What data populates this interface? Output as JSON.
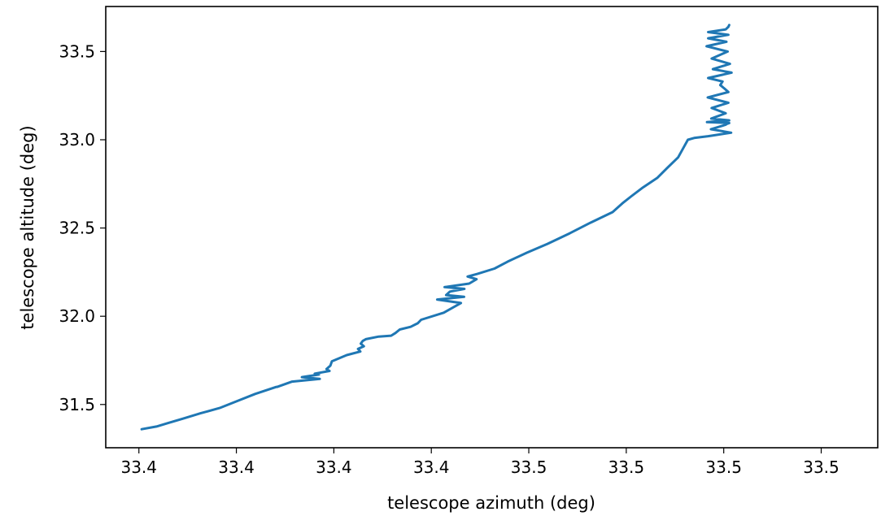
{
  "chart_data": {
    "type": "line",
    "xlabel": "telescope azimuth (deg)",
    "ylabel": "telescope altitude (deg)",
    "xlim": [
      33.3565,
      33.5545
    ],
    "ylim": [
      31.255,
      33.755
    ],
    "xtick_values": [
      33.365,
      33.39,
      33.415,
      33.44,
      33.465,
      33.49,
      33.515,
      33.54
    ],
    "xtick_labels": [
      "33.4",
      "33.4",
      "33.4",
      "33.4",
      "33.5",
      "33.5",
      "33.5",
      "33.5"
    ],
    "ytick_values": [
      31.5,
      32.0,
      32.5,
      33.0,
      33.5
    ],
    "ytick_labels": [
      "31.5",
      "32.0",
      "32.5",
      "33.0",
      "33.5"
    ],
    "grid": false,
    "line_color": "#1f77b4",
    "series": [
      {
        "x": [
          33.3657,
          33.3695,
          33.3725,
          33.3763,
          33.3808,
          33.3857,
          33.3903,
          33.3948,
          33.4003,
          33.4005,
          33.4043,
          33.4114,
          33.4068,
          33.4112,
          33.4101,
          33.4139,
          33.4131,
          33.4141,
          33.4145,
          33.4183,
          33.4218,
          33.4212,
          33.4227,
          33.4219,
          33.4224,
          33.4232,
          33.4265,
          33.4297,
          33.4308,
          33.4319,
          33.4347,
          33.4365,
          33.4374,
          33.4432,
          33.4476,
          33.4415,
          33.4484,
          33.4438,
          33.4448,
          33.4485,
          33.4434,
          33.4497,
          33.4516,
          33.4493,
          33.4518,
          33.4562,
          33.4596,
          33.4645,
          33.4698,
          33.4755,
          33.4808,
          33.4865,
          33.489,
          33.4913,
          33.4943,
          33.498,
          33.5005,
          33.5033,
          33.5048,
          33.5058,
          33.5074,
          33.511,
          33.5169,
          33.5117,
          33.5155,
          33.5158,
          33.5164,
          33.5107,
          33.5164,
          33.5118,
          33.5155,
          33.5119,
          33.5162,
          33.5109,
          33.5162,
          33.5152,
          33.5141,
          33.5147,
          33.511,
          33.517,
          33.5122,
          33.5166,
          33.5119,
          33.516,
          33.5106,
          33.5157,
          33.511,
          33.5162,
          33.511,
          33.5155,
          33.5162,
          33.5164
        ],
        "y": [
          31.36,
          31.375,
          31.395,
          31.42,
          31.45,
          31.48,
          31.52,
          31.56,
          31.6,
          31.6,
          31.63,
          31.645,
          31.655,
          31.67,
          31.675,
          31.69,
          31.7,
          31.72,
          31.745,
          31.78,
          31.8,
          31.815,
          31.83,
          31.845,
          31.86,
          31.87,
          31.885,
          31.89,
          31.905,
          31.925,
          31.94,
          31.96,
          31.98,
          32.02,
          32.075,
          32.095,
          32.11,
          32.12,
          32.14,
          32.155,
          32.165,
          32.185,
          32.21,
          32.225,
          32.24,
          32.27,
          32.31,
          32.36,
          32.41,
          32.47,
          32.53,
          32.59,
          32.64,
          32.68,
          32.73,
          32.785,
          32.84,
          32.9,
          32.96,
          33.0,
          33.01,
          33.02,
          33.04,
          33.06,
          33.085,
          33.09,
          33.095,
          33.1,
          33.11,
          33.12,
          33.15,
          33.18,
          33.21,
          33.24,
          33.27,
          33.29,
          33.31,
          33.33,
          33.35,
          33.38,
          33.4,
          33.43,
          33.46,
          33.5,
          33.53,
          33.555,
          33.575,
          33.595,
          33.61,
          33.625,
          33.64,
          33.65
        ]
      }
    ]
  }
}
